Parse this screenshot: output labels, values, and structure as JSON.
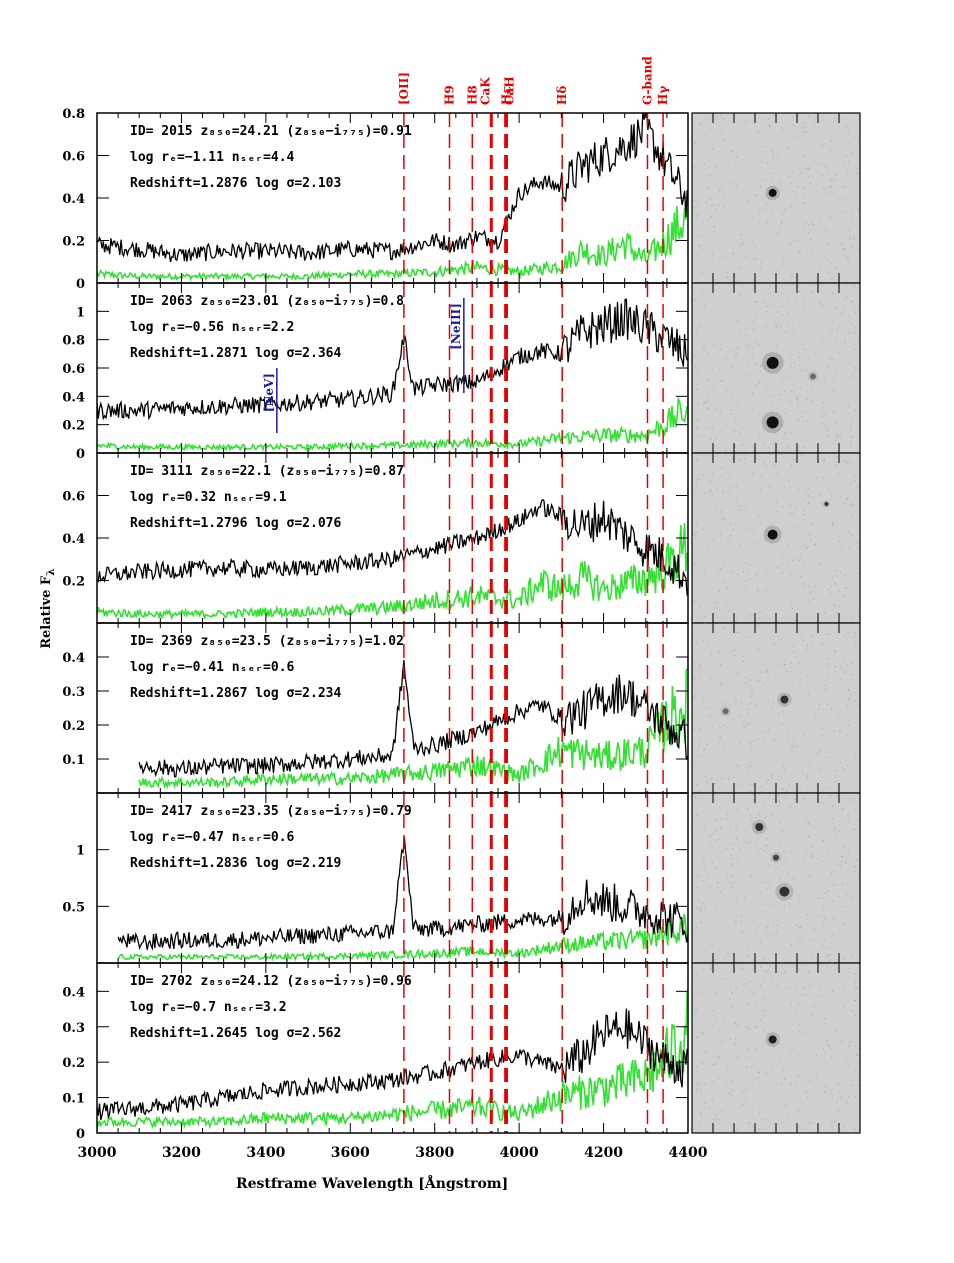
{
  "figure": {
    "x_axis_label": "Restframe Wavelength [Ångstrom]",
    "y_axis_label": "Relative F",
    "y_axis_label_subscript": "λ"
  },
  "colors": {
    "spectrum": "#000000",
    "noise": "#33e033",
    "line_marker": "#e60000",
    "ne_marker": "#1a1aa6",
    "thumb_bg": "#cfcfcf"
  },
  "line_labels": [
    {
      "label": "[OII]",
      "wavelength": 3727,
      "strong": false
    },
    {
      "label": "H9",
      "wavelength": 3835,
      "strong": false
    },
    {
      "label": "H8",
      "wavelength": 3889,
      "strong": false
    },
    {
      "label": "Hε",
      "wavelength": 3970,
      "strong": true
    },
    {
      "label": "CaK",
      "wavelength": 3934,
      "strong": true
    },
    {
      "label": "CaH",
      "wavelength": 3968,
      "strong": true
    },
    {
      "label": "Hδ",
      "wavelength": 4102,
      "strong": false
    },
    {
      "label": "G-band",
      "wavelength": 4304,
      "strong": false
    },
    {
      "label": "Hγ",
      "wavelength": 4341,
      "strong": false
    }
  ],
  "chart_data": {
    "type": "line",
    "xlabel": "Restframe Wavelength [Ångstrom]",
    "ylabel": "Relative Fλ",
    "xlim": [
      3000,
      4400
    ],
    "x_ticks": [
      "3000",
      "3200",
      "3400",
      "3600",
      "3800",
      "4000",
      "4200",
      "4400"
    ],
    "panels": [
      {
        "line1": "ID= 2015   z₈₅₀=24.21  (z₈₅₀−i₇₇₅)=0.91",
        "line2": "log rₑ=−1.11   nₛₑᵣ=4.4",
        "line3": "Redshift=1.2876   log σ=2.103",
        "ylim": [
          0,
          0.8
        ],
        "y_ticks": [
          "0",
          "0.2",
          "0.4",
          "0.6",
          "0.8"
        ],
        "y_tick_values": [
          0,
          0.2,
          0.4,
          0.6,
          0.8
        ],
        "spectrum_x": [
          3000,
          3100,
          3200,
          3300,
          3400,
          3500,
          3600,
          3700,
          3800,
          3850,
          3900,
          3950,
          4000,
          4050,
          4100,
          4150,
          4200,
          4250,
          4300,
          4350,
          4400
        ],
        "spectrum_y": [
          0.18,
          0.16,
          0.13,
          0.15,
          0.15,
          0.14,
          0.16,
          0.15,
          0.2,
          0.18,
          0.22,
          0.2,
          0.42,
          0.48,
          0.45,
          0.55,
          0.6,
          0.65,
          0.72,
          0.55,
          0.38
        ],
        "noise_x": [
          3000,
          3100,
          3200,
          3300,
          3400,
          3500,
          3600,
          3700,
          3800,
          3900,
          4000,
          4100,
          4150,
          4200,
          4250,
          4300,
          4350,
          4400
        ],
        "noise_y": [
          0.04,
          0.03,
          0.03,
          0.03,
          0.03,
          0.03,
          0.04,
          0.04,
          0.05,
          0.07,
          0.05,
          0.08,
          0.15,
          0.12,
          0.18,
          0.1,
          0.2,
          0.3
        ],
        "markers": [],
        "thumb_sources": [
          {
            "x": 0.48,
            "y": 0.47,
            "r": 4,
            "a": 1
          }
        ]
      },
      {
        "line1": "ID= 2063   z₈₅₀=23.01  (z₈₅₀−i₇₇₅)=0.8",
        "line2": "log rₑ=−0.56   nₛₑᵣ=2.2",
        "line3": "Redshift=1.2871   log σ=2.364",
        "ylim": [
          0,
          1.2
        ],
        "y_ticks": [
          "0",
          "0.2",
          "0.4",
          "0.6",
          "0.8",
          "1"
        ],
        "y_tick_values": [
          0,
          0.2,
          0.4,
          0.6,
          0.8,
          1.0
        ],
        "spectrum_x": [
          3000,
          3100,
          3200,
          3300,
          3400,
          3500,
          3600,
          3700,
          3727,
          3750,
          3800,
          3900,
          4000,
          4050,
          4100,
          4150,
          4200,
          4250,
          4300,
          4350,
          4400
        ],
        "spectrum_y": [
          0.3,
          0.3,
          0.32,
          0.33,
          0.34,
          0.36,
          0.38,
          0.42,
          0.82,
          0.45,
          0.48,
          0.5,
          0.68,
          0.72,
          0.7,
          0.85,
          0.9,
          0.95,
          0.88,
          0.8,
          0.68
        ],
        "noise_x": [
          3000,
          3100,
          3200,
          3300,
          3400,
          3500,
          3600,
          3700,
          3800,
          3900,
          4000,
          4100,
          4200,
          4300,
          4350,
          4400
        ],
        "noise_y": [
          0.05,
          0.04,
          0.04,
          0.04,
          0.04,
          0.04,
          0.05,
          0.05,
          0.06,
          0.07,
          0.06,
          0.1,
          0.12,
          0.12,
          0.2,
          0.3
        ],
        "markers": [
          {
            "label": "[NeV]",
            "wavelength": 3426
          },
          {
            "label": "[NeIII]",
            "wavelength": 3869
          }
        ],
        "thumb_sources": [
          {
            "x": 0.48,
            "y": 0.47,
            "r": 6,
            "a": 1
          },
          {
            "x": 0.48,
            "y": 0.82,
            "r": 6,
            "a": 1
          },
          {
            "x": 0.72,
            "y": 0.55,
            "r": 3,
            "a": 0.5
          }
        ]
      },
      {
        "line1": "ID= 3111   z₈₅₀=22.1  (z₈₅₀−i₇₇₅)=0.87",
        "line2": "log rₑ=0.32   nₛₑᵣ=9.1",
        "line3": "Redshift=1.2796   log σ=2.076",
        "ylim": [
          0,
          0.8
        ],
        "y_ticks": [
          "0.2",
          "0.4",
          "0.6"
        ],
        "y_tick_values": [
          0.2,
          0.4,
          0.6
        ],
        "spectrum_x": [
          3000,
          3100,
          3200,
          3300,
          3400,
          3500,
          3600,
          3700,
          3800,
          3900,
          4000,
          4050,
          4100,
          4150,
          4200,
          4250,
          4300,
          4350,
          4400
        ],
        "spectrum_y": [
          0.22,
          0.24,
          0.25,
          0.26,
          0.25,
          0.26,
          0.28,
          0.3,
          0.35,
          0.4,
          0.48,
          0.55,
          0.5,
          0.45,
          0.5,
          0.42,
          0.35,
          0.3,
          0.2
        ],
        "noise_x": [
          3000,
          3100,
          3200,
          3300,
          3400,
          3500,
          3600,
          3700,
          3800,
          3900,
          4000,
          4050,
          4100,
          4150,
          4200,
          4300,
          4350,
          4400
        ],
        "noise_y": [
          0.05,
          0.04,
          0.04,
          0.04,
          0.05,
          0.05,
          0.06,
          0.07,
          0.1,
          0.12,
          0.1,
          0.18,
          0.15,
          0.2,
          0.15,
          0.2,
          0.25,
          0.35
        ],
        "markers": [],
        "thumb_sources": [
          {
            "x": 0.48,
            "y": 0.48,
            "r": 5,
            "a": 1
          },
          {
            "x": 0.8,
            "y": 0.3,
            "r": 2,
            "a": 0.8
          }
        ]
      },
      {
        "line1": "ID= 2369   z₈₅₀=23.5  (z₈₅₀−i₇₇₅)=1.02",
        "line2": "log rₑ=−0.41   nₛₑᵣ=0.6",
        "line3": "Redshift=1.2867   log σ=2.234",
        "ylim": [
          0,
          0.5
        ],
        "y_ticks": [
          "0.1",
          "0.2",
          "0.3",
          "0.4"
        ],
        "y_tick_values": [
          0.1,
          0.2,
          0.3,
          0.4
        ],
        "spectrum_x": [
          3100,
          3200,
          3300,
          3400,
          3500,
          3600,
          3700,
          3727,
          3750,
          3800,
          3900,
          4000,
          4050,
          4100,
          4150,
          4200,
          4250,
          4300,
          4350,
          4400
        ],
        "spectrum_y": [
          0.08,
          0.07,
          0.08,
          0.08,
          0.09,
          0.1,
          0.11,
          0.38,
          0.13,
          0.14,
          0.18,
          0.24,
          0.26,
          0.22,
          0.24,
          0.28,
          0.3,
          0.25,
          0.2,
          0.15
        ],
        "noise_x": [
          3100,
          3200,
          3300,
          3400,
          3500,
          3600,
          3700,
          3800,
          3900,
          4000,
          4100,
          4200,
          4300,
          4350,
          4400
        ],
        "noise_y": [
          0.03,
          0.03,
          0.03,
          0.04,
          0.04,
          0.04,
          0.05,
          0.06,
          0.08,
          0.05,
          0.12,
          0.1,
          0.12,
          0.2,
          0.25
        ],
        "markers": [],
        "thumb_sources": [
          {
            "x": 0.55,
            "y": 0.45,
            "r": 4,
            "a": 0.8
          },
          {
            "x": 0.2,
            "y": 0.52,
            "r": 3,
            "a": 0.5
          }
        ]
      },
      {
        "line1": "ID= 2417   z₈₅₀=23.35  (z₈₅₀−i₇₇₅)=0.79",
        "line2": "log rₑ=−0.47   nₛₑᵣ=0.6",
        "line3": "Redshift=1.2836   log σ=2.219",
        "ylim": [
          0,
          1.5
        ],
        "y_ticks": [
          "0.5",
          "1"
        ],
        "y_tick_values": [
          0.5,
          1.0
        ],
        "spectrum_x": [
          3050,
          3100,
          3200,
          3300,
          3400,
          3500,
          3600,
          3700,
          3727,
          3750,
          3800,
          3900,
          4000,
          4100,
          4150,
          4200,
          4250,
          4300,
          4350,
          4400
        ],
        "spectrum_y": [
          0.2,
          0.18,
          0.2,
          0.2,
          0.22,
          0.24,
          0.26,
          0.28,
          1.1,
          0.3,
          0.3,
          0.34,
          0.38,
          0.4,
          0.6,
          0.55,
          0.5,
          0.45,
          0.4,
          0.35
        ],
        "noise_x": [
          3050,
          3200,
          3400,
          3600,
          3800,
          3900,
          4000,
          4100,
          4200,
          4300,
          4400
        ],
        "noise_y": [
          0.05,
          0.05,
          0.05,
          0.06,
          0.08,
          0.1,
          0.08,
          0.15,
          0.18,
          0.2,
          0.3
        ],
        "markers": [],
        "thumb_sources": [
          {
            "x": 0.4,
            "y": 0.2,
            "r": 4,
            "a": 0.8
          },
          {
            "x": 0.5,
            "y": 0.38,
            "r": 3,
            "a": 0.7
          },
          {
            "x": 0.55,
            "y": 0.58,
            "r": 5,
            "a": 0.8
          }
        ]
      },
      {
        "line1": "ID= 2702   z₈₅₀=24.12  (z₈₅₀−i₇₇₅)=0.96",
        "line2": "log rₑ=−0.7   nₛₑᵣ=3.2",
        "line3": "Redshift=1.2645   log σ=2.562",
        "ylim": [
          0,
          0.48
        ],
        "y_ticks": [
          "0",
          "0.1",
          "0.2",
          "0.3",
          "0.4"
        ],
        "y_tick_values": [
          0,
          0.1,
          0.2,
          0.3,
          0.4
        ],
        "spectrum_x": [
          3000,
          3100,
          3200,
          3300,
          3400,
          3500,
          3600,
          3700,
          3800,
          3900,
          4000,
          4050,
          4100,
          4150,
          4200,
          4250,
          4300,
          4350,
          4400
        ],
        "spectrum_y": [
          0.06,
          0.07,
          0.08,
          0.1,
          0.12,
          0.13,
          0.14,
          0.15,
          0.17,
          0.2,
          0.22,
          0.2,
          0.18,
          0.22,
          0.28,
          0.3,
          0.25,
          0.2,
          0.18
        ],
        "noise_x": [
          3000,
          3100,
          3200,
          3300,
          3400,
          3500,
          3600,
          3700,
          3800,
          3900,
          4000,
          4100,
          4200,
          4300,
          4350,
          4400
        ],
        "noise_y": [
          0.03,
          0.03,
          0.03,
          0.03,
          0.04,
          0.04,
          0.04,
          0.05,
          0.06,
          0.07,
          0.05,
          0.1,
          0.12,
          0.15,
          0.2,
          0.28
        ],
        "markers": [],
        "thumb_sources": [
          {
            "x": 0.48,
            "y": 0.45,
            "r": 4,
            "a": 0.9
          }
        ]
      }
    ]
  }
}
